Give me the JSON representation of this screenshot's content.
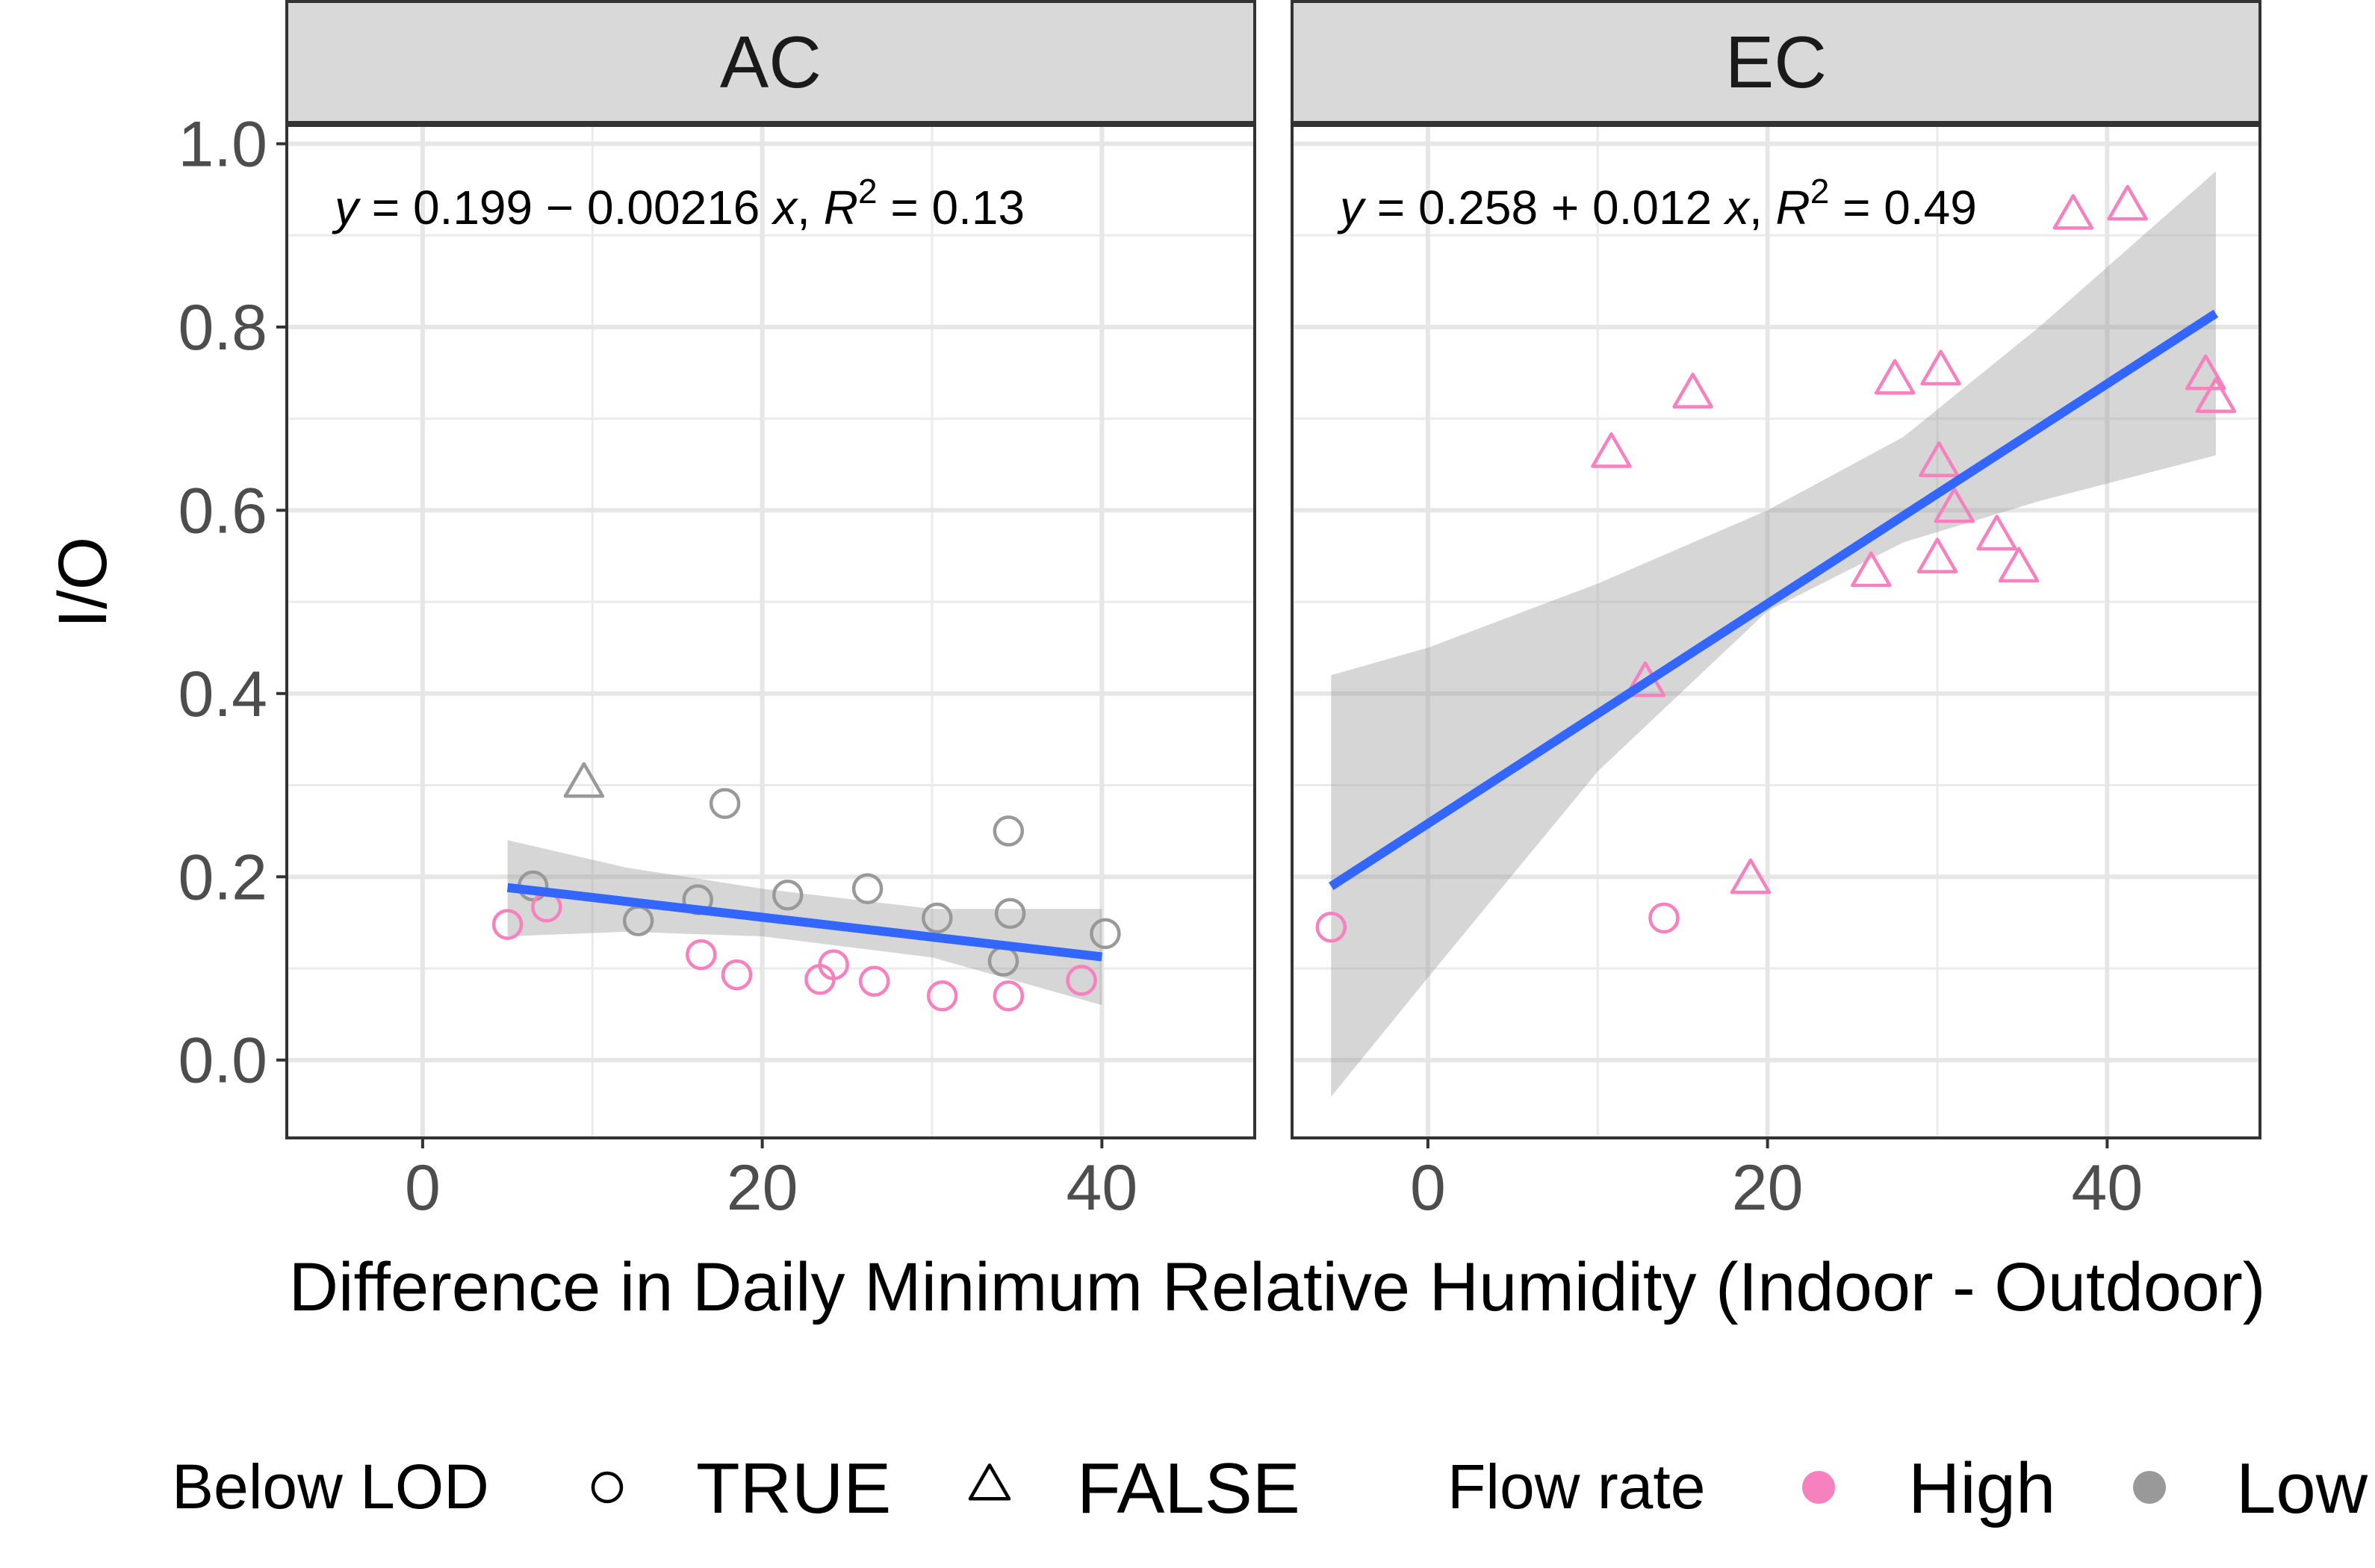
{
  "chart_data": {
    "type": "scatter",
    "xlabel": "Difference in Daily Minimum Relative Humidity (Indoor - Outdoor)",
    "ylabel": "I/O",
    "xlim": [
      -8,
      49
    ],
    "ylim": [
      -0.085,
      1.02
    ],
    "x_ticks": [
      0,
      20,
      40
    ],
    "y_ticks": [
      0.0,
      0.2,
      0.4,
      0.6,
      0.8,
      1.0
    ],
    "x_tick_labels": [
      "0",
      "20",
      "40"
    ],
    "y_tick_labels": [
      "0.0",
      "0.2",
      "0.4",
      "0.6",
      "0.8",
      "1.0"
    ],
    "grid": true,
    "legend_position": "bottom",
    "colors": {
      "High": "#f781bf",
      "Low": "#999999",
      "fit": "#3366ff",
      "ribbon": "#999999",
      "strip": "#d9d9d9"
    },
    "legend": {
      "shape_title": "Below LOD",
      "shape_items": [
        {
          "label": "TRUE",
          "shape": "circle"
        },
        {
          "label": "FALSE",
          "shape": "triangle"
        }
      ],
      "color_title": "Flow rate",
      "color_items": [
        {
          "label": "High",
          "color": "#f781bf"
        },
        {
          "label": "Low",
          "color": "#999999"
        }
      ]
    },
    "panels": [
      {
        "name": "AC",
        "equation": {
          "y": "y",
          "text1": " = 0.199 − 0.00216 ",
          "x": "x",
          "text2": ", ",
          "r": "R",
          "sup": "2",
          "text3": " = 0.13"
        },
        "fit": {
          "intercept": 0.199,
          "slope": -0.00216,
          "x_range": [
            5,
            40
          ]
        },
        "ribbon": {
          "x": [
            5,
            12,
            20,
            30,
            40
          ],
          "lower": [
            0.135,
            0.14,
            0.135,
            0.112,
            0.06
          ],
          "upper": [
            0.24,
            0.21,
            0.187,
            0.165,
            0.165
          ]
        },
        "points": [
          {
            "x": 9.5,
            "y": 0.3,
            "lod": "FALSE",
            "flow": "Low"
          },
          {
            "x": 17.8,
            "y": 0.28,
            "lod": "TRUE",
            "flow": "Low"
          },
          {
            "x": 34.5,
            "y": 0.25,
            "lod": "TRUE",
            "flow": "Low"
          },
          {
            "x": 6.5,
            "y": 0.19,
            "lod": "TRUE",
            "flow": "Low"
          },
          {
            "x": 26.2,
            "y": 0.187,
            "lod": "TRUE",
            "flow": "Low"
          },
          {
            "x": 21.5,
            "y": 0.18,
            "lod": "TRUE",
            "flow": "Low"
          },
          {
            "x": 16.2,
            "y": 0.175,
            "lod": "TRUE",
            "flow": "Low"
          },
          {
            "x": 34.6,
            "y": 0.16,
            "lod": "TRUE",
            "flow": "Low"
          },
          {
            "x": 30.3,
            "y": 0.155,
            "lod": "TRUE",
            "flow": "Low"
          },
          {
            "x": 12.7,
            "y": 0.152,
            "lod": "TRUE",
            "flow": "Low"
          },
          {
            "x": 40.2,
            "y": 0.138,
            "lod": "TRUE",
            "flow": "Low"
          },
          {
            "x": 34.2,
            "y": 0.108,
            "lod": "TRUE",
            "flow": "Low"
          },
          {
            "x": 7.3,
            "y": 0.167,
            "lod": "TRUE",
            "flow": "High"
          },
          {
            "x": 5.0,
            "y": 0.148,
            "lod": "TRUE",
            "flow": "High"
          },
          {
            "x": 16.4,
            "y": 0.115,
            "lod": "TRUE",
            "flow": "High"
          },
          {
            "x": 24.2,
            "y": 0.104,
            "lod": "TRUE",
            "flow": "High"
          },
          {
            "x": 18.5,
            "y": 0.093,
            "lod": "TRUE",
            "flow": "High"
          },
          {
            "x": 23.4,
            "y": 0.088,
            "lod": "TRUE",
            "flow": "High"
          },
          {
            "x": 26.6,
            "y": 0.086,
            "lod": "TRUE",
            "flow": "High"
          },
          {
            "x": 38.8,
            "y": 0.087,
            "lod": "TRUE",
            "flow": "High"
          },
          {
            "x": 30.6,
            "y": 0.07,
            "lod": "TRUE",
            "flow": "High"
          },
          {
            "x": 34.5,
            "y": 0.07,
            "lod": "TRUE",
            "flow": "High"
          }
        ]
      },
      {
        "name": "EC",
        "equation": {
          "y": "y",
          "text1": " = 0.258 + 0.012 ",
          "x": "x",
          "text2": ", ",
          "r": "R",
          "sup": "2",
          "text3": " = 0.49"
        },
        "fit": {
          "intercept": 0.258,
          "slope": 0.012,
          "x_range": [
            -5.7,
            46.4
          ]
        },
        "ribbon": {
          "x": [
            -5.7,
            0,
            10,
            20,
            28,
            36,
            46.4
          ],
          "lower": [
            -0.04,
            0.09,
            0.315,
            0.49,
            0.565,
            0.61,
            0.66
          ],
          "upper": [
            0.42,
            0.45,
            0.52,
            0.6,
            0.68,
            0.8,
            0.97
          ]
        },
        "points": [
          {
            "x": 41.2,
            "y": 0.93,
            "lod": "FALSE",
            "flow": "High"
          },
          {
            "x": 38.0,
            "y": 0.92,
            "lod": "FALSE",
            "flow": "High"
          },
          {
            "x": 30.2,
            "y": 0.75,
            "lod": "FALSE",
            "flow": "High"
          },
          {
            "x": 45.8,
            "y": 0.745,
            "lod": "FALSE",
            "flow": "High"
          },
          {
            "x": 27.5,
            "y": 0.74,
            "lod": "FALSE",
            "flow": "High"
          },
          {
            "x": 15.6,
            "y": 0.725,
            "lod": "FALSE",
            "flow": "High"
          },
          {
            "x": 46.4,
            "y": 0.72,
            "lod": "FALSE",
            "flow": "High"
          },
          {
            "x": 10.8,
            "y": 0.66,
            "lod": "FALSE",
            "flow": "High"
          },
          {
            "x": 30.1,
            "y": 0.65,
            "lod": "FALSE",
            "flow": "High"
          },
          {
            "x": 31.0,
            "y": 0.6,
            "lod": "FALSE",
            "flow": "High"
          },
          {
            "x": 33.5,
            "y": 0.57,
            "lod": "FALSE",
            "flow": "High"
          },
          {
            "x": 30.0,
            "y": 0.545,
            "lod": "FALSE",
            "flow": "High"
          },
          {
            "x": 34.8,
            "y": 0.535,
            "lod": "FALSE",
            "flow": "High"
          },
          {
            "x": 26.1,
            "y": 0.53,
            "lod": "FALSE",
            "flow": "High"
          },
          {
            "x": 12.8,
            "y": 0.41,
            "lod": "FALSE",
            "flow": "High"
          },
          {
            "x": 19.0,
            "y": 0.195,
            "lod": "FALSE",
            "flow": "High"
          },
          {
            "x": 13.9,
            "y": 0.155,
            "lod": "TRUE",
            "flow": "High"
          },
          {
            "x": -5.7,
            "y": 0.145,
            "lod": "TRUE",
            "flow": "High"
          }
        ]
      }
    ]
  }
}
